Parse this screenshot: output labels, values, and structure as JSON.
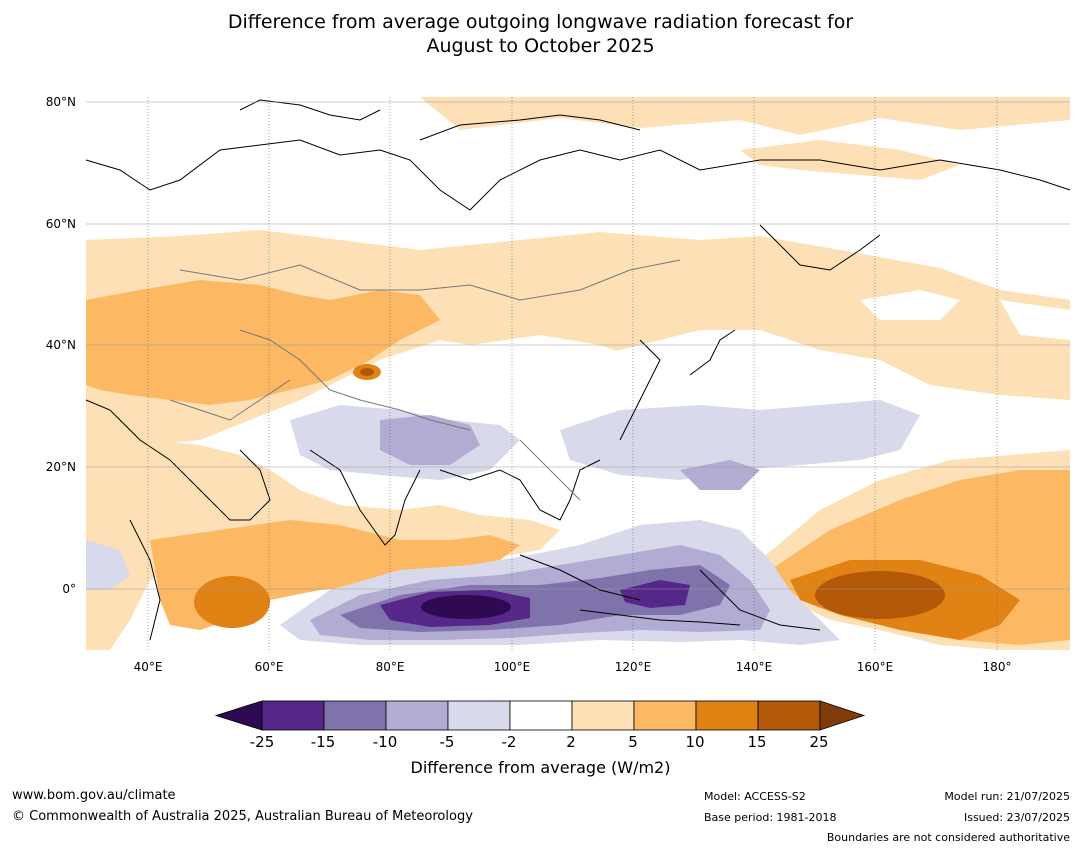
{
  "title_line1": "Difference from average outgoing longwave radiation forecast for",
  "title_line2": "August to October 2025",
  "lat_labels": [
    "80°N",
    "60°N",
    "40°N",
    "20°N",
    "0°"
  ],
  "lon_labels": [
    "40°E",
    "60°E",
    "80°E",
    "100°E",
    "120°E",
    "140°E",
    "160°E",
    "180°"
  ],
  "colorbar": {
    "ticks": [
      "-25",
      "-15",
      "-10",
      "-5",
      "-2",
      "2",
      "5",
      "10",
      "15",
      "25"
    ],
    "colors": [
      "#2d0a52",
      "#542788",
      "#8073ac",
      "#b2abd2",
      "#d8daeb",
      "#ffffff",
      "#fee0b6",
      "#fdb863",
      "#e08214",
      "#b35806",
      "#7f3b08"
    ],
    "title": "Difference from average (W/m2)"
  },
  "footer": {
    "website": "www.bom.gov.au/climate",
    "copyright": "© Commonwealth of Australia 2025, Australian Bureau of Meteorology",
    "model": "Model: ACCESS-S2",
    "base_period": "Base period: 1981-2018",
    "model_run": "Model run: 21/07/2025",
    "issued": "Issued: 23/07/2025",
    "disclaimer": "Boundaries are not considered authoritative"
  }
}
